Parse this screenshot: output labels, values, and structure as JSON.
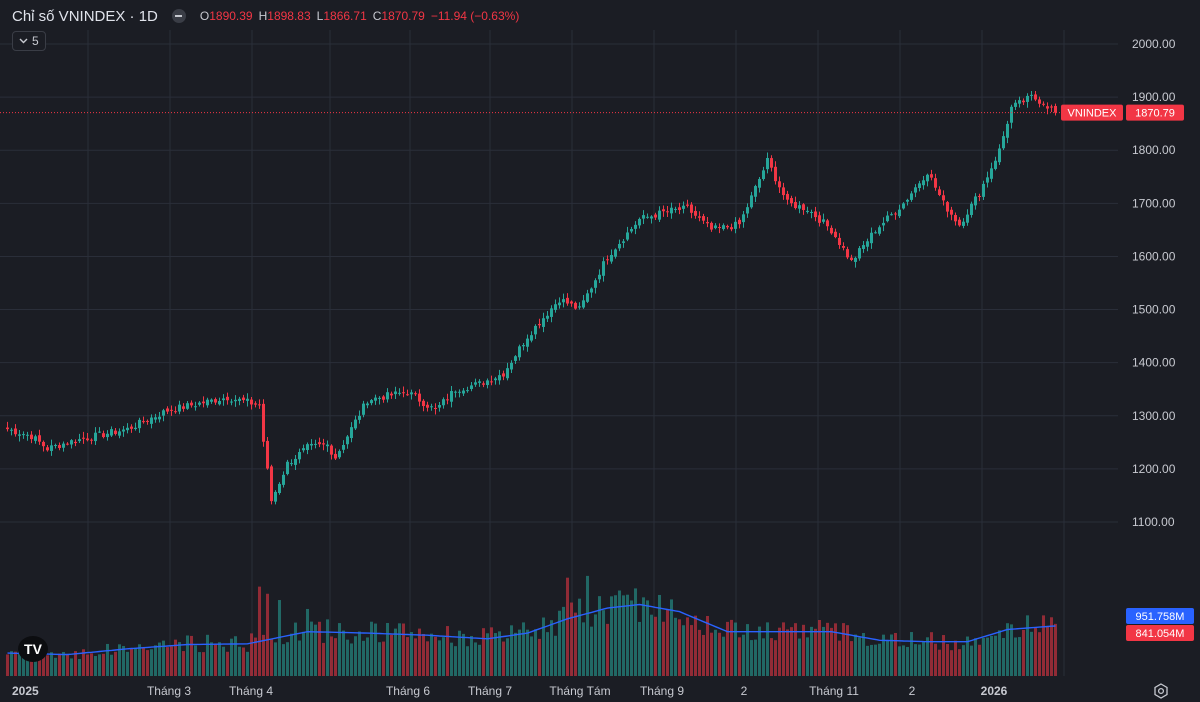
{
  "header": {
    "title": "Chỉ số VNINDEX · 1D",
    "o_label": "O",
    "o_value": "1890.39",
    "h_label": "H",
    "h_value": "1898.83",
    "l_label": "L",
    "l_value": "1866.71",
    "c_label": "C",
    "c_value": "1870.79",
    "change": "−11.94 (−0.63%)"
  },
  "interval_selector": {
    "value": "5"
  },
  "price_label": {
    "name": "VNINDEX",
    "value": "1870.79"
  },
  "volume_labels": {
    "ma": "951.758M",
    "volume": "841.054M"
  },
  "colors": {
    "up": "#26a69a",
    "down": "#f23645",
    "ma": "#2962ff",
    "bg": "#1b1d24",
    "grid": "#2a2e39"
  },
  "icons": [
    "chevron-down-icon",
    "tradingview-logo-icon",
    "settings-gear-icon",
    "hide-dot-icon"
  ],
  "chart_data": {
    "type": "candlestick",
    "title": "Chỉ số VNINDEX · 1D",
    "y_ticks": [
      1100,
      1200,
      1300,
      1400,
      1500,
      1600,
      1700,
      1800,
      1900,
      2000
    ],
    "y_tick_labels": [
      "1100.00",
      "1200.00",
      "1300.00",
      "1400.00",
      "1500.00",
      "1600.00",
      "1700.00",
      "1800.00",
      "1900.00",
      "2000.00"
    ],
    "ylim": [
      1080,
      2010
    ],
    "x_labels": [
      "2025",
      "Tháng 3",
      "Tháng 4",
      "Tháng 6",
      "Tháng 7",
      "Tháng Tám",
      "Tháng 9",
      "2",
      "Tháng 11",
      "2",
      "2026"
    ],
    "last_price": 1870.79,
    "close_anchors": [
      [
        0,
        1275
      ],
      [
        6,
        1262
      ],
      [
        10,
        1238
      ],
      [
        15,
        1250
      ],
      [
        22,
        1262
      ],
      [
        30,
        1275
      ],
      [
        40,
        1310
      ],
      [
        55,
        1335
      ],
      [
        63,
        1320
      ],
      [
        64,
        1252
      ],
      [
        66,
        1140
      ],
      [
        70,
        1210
      ],
      [
        75,
        1240
      ],
      [
        80,
        1245
      ],
      [
        82,
        1222
      ],
      [
        90,
        1330
      ],
      [
        100,
        1345
      ],
      [
        107,
        1310
      ],
      [
        112,
        1350
      ],
      [
        118,
        1360
      ],
      [
        124,
        1380
      ],
      [
        130,
        1450
      ],
      [
        138,
        1520
      ],
      [
        143,
        1500
      ],
      [
        150,
        1600
      ],
      [
        158,
        1670
      ],
      [
        165,
        1685
      ],
      [
        170,
        1690
      ],
      [
        176,
        1650
      ],
      [
        183,
        1660
      ],
      [
        190,
        1780
      ],
      [
        195,
        1700
      ],
      [
        200,
        1690
      ],
      [
        206,
        1650
      ],
      [
        211,
        1590
      ],
      [
        217,
        1650
      ],
      [
        224,
        1700
      ],
      [
        230,
        1760
      ],
      [
        234,
        1700
      ],
      [
        238,
        1660
      ],
      [
        243,
        1720
      ],
      [
        248,
        1800
      ],
      [
        251,
        1880
      ],
      [
        256,
        1900
      ],
      [
        259,
        1890
      ],
      [
        262,
        1870.79
      ]
    ],
    "volume_ma_anchors": [
      [
        0,
        0.32
      ],
      [
        15,
        0.3
      ],
      [
        30,
        0.38
      ],
      [
        45,
        0.44
      ],
      [
        60,
        0.45
      ],
      [
        75,
        0.62
      ],
      [
        90,
        0.6
      ],
      [
        105,
        0.57
      ],
      [
        120,
        0.52
      ],
      [
        130,
        0.6
      ],
      [
        140,
        0.8
      ],
      [
        150,
        0.95
      ],
      [
        158,
        1.0
      ],
      [
        168,
        0.9
      ],
      [
        180,
        0.62
      ],
      [
        195,
        0.62
      ],
      [
        206,
        0.62
      ],
      [
        218,
        0.5
      ],
      [
        230,
        0.48
      ],
      [
        240,
        0.48
      ],
      [
        250,
        0.65
      ],
      [
        262,
        0.7
      ]
    ],
    "volume_spikes": [
      [
        63,
        1.0
      ],
      [
        65,
        0.92
      ],
      [
        68,
        0.85
      ],
      [
        75,
        0.75
      ],
      [
        140,
        1.1
      ],
      [
        145,
        1.12
      ],
      [
        157,
        0.98
      ],
      [
        159,
        0.88
      ],
      [
        190,
        0.6
      ],
      [
        194,
        0.6
      ]
    ]
  }
}
